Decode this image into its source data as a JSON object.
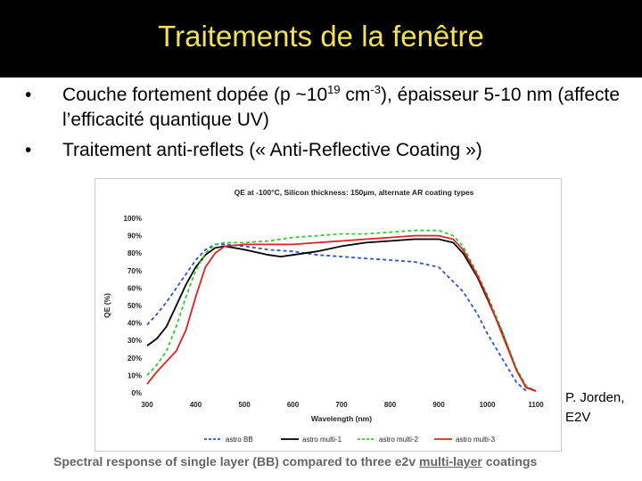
{
  "slide": {
    "title": "Traitements de la fenêtre",
    "bullets": [
      {
        "prefix": "Couche fortement dopée (p ~10",
        "sup1": "19",
        "mid": " cm",
        "sup2": "-3",
        "suffix": "), épaisseur 5-10 nm (affecte l’efficacité quantique UV)"
      },
      {
        "text": "Traitement anti-reflets (« Anti-Reflective Coating »)"
      }
    ],
    "credit_line1": "P. Jorden,",
    "credit_line2": "E2V",
    "caption_prefix": "Spectral response of single layer (BB) compared to three e2v ",
    "caption_link": "multi-layer",
    "caption_suffix": " coatings"
  },
  "chart_data": {
    "type": "line",
    "title": "QE  at -100°C,  Silicon thickness: 150µm, alternate AR coating types",
    "xlabel": "Wavelength (nm)",
    "ylabel": "QE (%)",
    "xlim": [
      300,
      1100
    ],
    "ylim": [
      0,
      100
    ],
    "x_ticks": [
      "300",
      "400",
      "500",
      "600",
      "700",
      "800",
      "900",
      "1000",
      "1100"
    ],
    "y_ticks": [
      "0%",
      "10%",
      "20%",
      "30%",
      "40%",
      "50%",
      "60%",
      "70%",
      "80%",
      "90%",
      "100%"
    ],
    "grid": false,
    "legend_position": "bottom",
    "series": [
      {
        "name": "astro BB",
        "color": "#3355cc",
        "dash": "dashed",
        "x": [
          300,
          320,
          340,
          360,
          380,
          400,
          420,
          440,
          460,
          500,
          550,
          600,
          650,
          700,
          750,
          800,
          850,
          900,
          950,
          980,
          1000,
          1030,
          1060,
          1080
        ],
        "y": [
          39,
          45,
          52,
          60,
          68,
          76,
          82,
          85,
          85,
          84,
          82,
          81,
          79,
          78,
          77,
          76,
          75,
          72,
          58,
          45,
          34,
          20,
          6,
          1
        ]
      },
      {
        "name": "astro multi-1",
        "color": "#000000",
        "dash": "solid",
        "x": [
          300,
          320,
          340,
          360,
          380,
          400,
          420,
          440,
          460,
          500,
          550,
          575,
          600,
          650,
          700,
          750,
          800,
          850,
          900,
          930,
          950,
          980,
          1000,
          1030,
          1060,
          1080,
          1100
        ],
        "y": [
          27,
          31,
          38,
          50,
          62,
          72,
          79,
          83,
          84,
          82,
          79,
          78,
          79,
          81,
          84,
          86,
          87,
          88,
          88,
          86,
          80,
          66,
          54,
          35,
          13,
          3,
          1
        ]
      },
      {
        "name": "astro multi-2",
        "color": "#33cc33",
        "dash": "dashed",
        "x": [
          300,
          320,
          340,
          360,
          380,
          400,
          420,
          440,
          460,
          500,
          550,
          600,
          650,
          700,
          750,
          800,
          850,
          880,
          900,
          930,
          950,
          980,
          1000,
          1030,
          1060,
          1080,
          1100
        ],
        "y": [
          10,
          16,
          24,
          38,
          55,
          70,
          80,
          85,
          86,
          86,
          87,
          89,
          90,
          91,
          91,
          92,
          93,
          93,
          93,
          90,
          84,
          68,
          56,
          36,
          14,
          4,
          1
        ]
      },
      {
        "name": "astro multi-3",
        "color": "#dd2222",
        "dash": "solid",
        "x": [
          300,
          320,
          340,
          360,
          380,
          400,
          420,
          440,
          460,
          500,
          550,
          600,
          650,
          700,
          750,
          800,
          850,
          880,
          900,
          930,
          950,
          980,
          1000,
          1030,
          1060,
          1080,
          1100
        ],
        "y": [
          5,
          12,
          18,
          24,
          36,
          55,
          72,
          80,
          84,
          85,
          85,
          85,
          86,
          87,
          88,
          89,
          90,
          90,
          90,
          88,
          82,
          67,
          55,
          34,
          13,
          3,
          1
        ]
      }
    ]
  }
}
